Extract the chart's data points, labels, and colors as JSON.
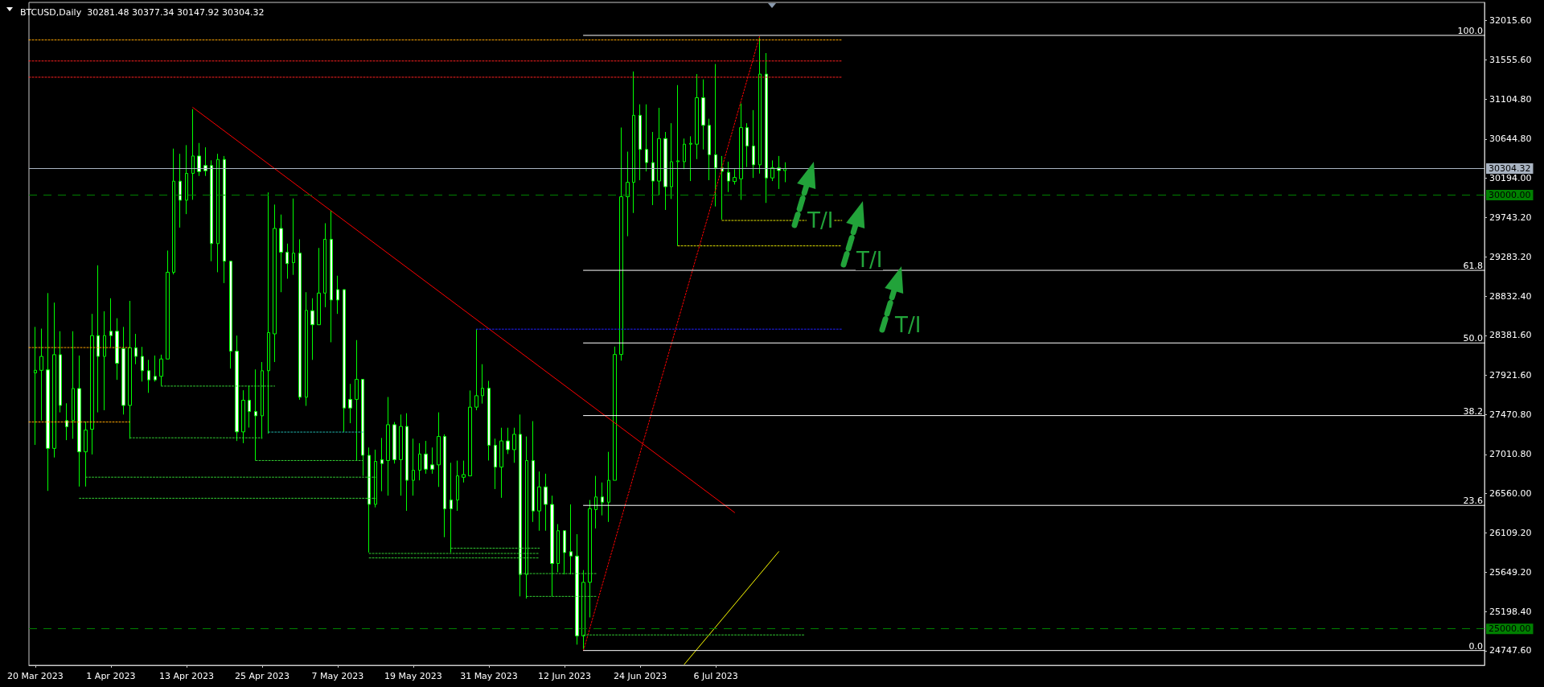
{
  "chart_data": {
    "type": "candlestick",
    "title": "BTCUSD,Daily  30281.48 30377.34 30147.92 30304.32",
    "xlim": [
      "2023-03-19",
      "2023-11-05"
    ],
    "xticks": [
      {
        "value": "2023-03-20",
        "label": "20 Mar 2023"
      },
      {
        "value": "2023-04-01",
        "label": "1 Apr 2023"
      },
      {
        "value": "2023-04-13",
        "label": "13 Apr 2023"
      },
      {
        "value": "2023-04-25",
        "label": "25 Apr 2023"
      },
      {
        "value": "2023-05-07",
        "label": "7 May 2023"
      },
      {
        "value": "2023-05-19",
        "label": "19 May 2023"
      },
      {
        "value": "2023-05-31",
        "label": "31 May 2023"
      },
      {
        "value": "2023-06-12",
        "label": "12 Jun 2023"
      },
      {
        "value": "2023-06-24",
        "label": "24 Jun 2023"
      },
      {
        "value": "2023-07-06",
        "label": "6 Jul 2023"
      }
    ],
    "ylim": [
      24580,
      32220
    ],
    "yticks": [
      {
        "value": 24747.6,
        "label": "24747.60"
      },
      {
        "value": 25198.4,
        "label": "25198.40"
      },
      {
        "value": 25649.2,
        "label": "25649.20"
      },
      {
        "value": 26109.2,
        "label": "26109.20"
      },
      {
        "value": 26560,
        "label": "26560.00"
      },
      {
        "value": 27010.8,
        "label": "27010.80"
      },
      {
        "value": 27470.8,
        "label": "27470.80"
      },
      {
        "value": 27921.6,
        "label": "27921.60"
      },
      {
        "value": 28381.6,
        "label": "28381.60"
      },
      {
        "value": 28832.4,
        "label": "28832.40"
      },
      {
        "value": 29283.2,
        "label": "29283.20"
      },
      {
        "value": 29743.2,
        "label": "29743.20"
      },
      {
        "value": 30194,
        "label": "30194.00"
      },
      {
        "value": 30644.8,
        "label": "30644.80"
      },
      {
        "value": 31104.8,
        "label": "31104.80"
      },
      {
        "value": 31555.6,
        "label": "31555.60"
      },
      {
        "value": 32015.6,
        "label": "32015.60"
      }
    ],
    "ref_lines": [
      {
        "axis": "y",
        "value": 30304.32,
        "label": "30304.32",
        "color": "#a9b4c2",
        "line_style": "solid"
      },
      {
        "axis": "y",
        "value": 30000,
        "label": "30000.00",
        "color": "#008000",
        "line_style": "dashed"
      },
      {
        "axis": "y",
        "value": 25000,
        "label": "25000.00",
        "color": "#008000",
        "line_style": "dashed"
      }
    ],
    "annotations": [
      "T/I",
      "T/I",
      "T/I"
    ],
    "series": [
      {
        "color": "#00ff00",
        "x": [
          "2023-03-20",
          "2023-03-21",
          "2023-03-22",
          "2023-03-23",
          "2023-03-24",
          "2023-03-25",
          "2023-03-26",
          "2023-03-27",
          "2023-03-28",
          "2023-03-29",
          "2023-03-30",
          "2023-03-31",
          "2023-04-01",
          "2023-04-02",
          "2023-04-03",
          "2023-04-04",
          "2023-04-05",
          "2023-04-06",
          "2023-04-07",
          "2023-04-08",
          "2023-04-09",
          "2023-04-10",
          "2023-04-11",
          "2023-04-12",
          "2023-04-13",
          "2023-04-14",
          "2023-04-15",
          "2023-04-16",
          "2023-04-17",
          "2023-04-18",
          "2023-04-19",
          "2023-04-20",
          "2023-04-21",
          "2023-04-22",
          "2023-04-23",
          "2023-04-24",
          "2023-04-25",
          "2023-04-26",
          "2023-04-27",
          "2023-04-28",
          "2023-04-29",
          "2023-04-30",
          "2023-05-01",
          "2023-05-02",
          "2023-05-03",
          "2023-05-04",
          "2023-05-05",
          "2023-05-06",
          "2023-05-07",
          "2023-05-08",
          "2023-05-09",
          "2023-05-10",
          "2023-05-11",
          "2023-05-12",
          "2023-05-13",
          "2023-05-14",
          "2023-05-15",
          "2023-05-16",
          "2023-05-17",
          "2023-05-18",
          "2023-05-19",
          "2023-05-20",
          "2023-05-21",
          "2023-05-22",
          "2023-05-23",
          "2023-05-24",
          "2023-05-25",
          "2023-05-26",
          "2023-05-27",
          "2023-05-28",
          "2023-05-29",
          "2023-05-30",
          "2023-05-31",
          "2023-06-01",
          "2023-06-02",
          "2023-06-03",
          "2023-06-04",
          "2023-06-05",
          "2023-06-06",
          "2023-06-07",
          "2023-06-08",
          "2023-06-09",
          "2023-06-10",
          "2023-06-11",
          "2023-06-12",
          "2023-06-13",
          "2023-06-14",
          "2023-06-15",
          "2023-06-16",
          "2023-06-17",
          "2023-06-18",
          "2023-06-19",
          "2023-06-20",
          "2023-06-21",
          "2023-06-22",
          "2023-06-23",
          "2023-06-24",
          "2023-06-25",
          "2023-06-26",
          "2023-06-27",
          "2023-06-28",
          "2023-06-29",
          "2023-06-30",
          "2023-07-01",
          "2023-07-02",
          "2023-07-03",
          "2023-07-04",
          "2023-07-05",
          "2023-07-06",
          "2023-07-07",
          "2023-07-08",
          "2023-07-09",
          "2023-07-10",
          "2023-07-11",
          "2023-07-12",
          "2023-07-13",
          "2023-07-14",
          "2023-07-15",
          "2023-07-16",
          "2023-07-17"
        ],
        "ohlc": [
          [
            27950,
            28480,
            27120,
            27980
          ],
          [
            27980,
            28460,
            27400,
            28140
          ],
          [
            27985,
            28870,
            26590,
            27080
          ],
          [
            27080,
            28760,
            26975,
            28160
          ],
          [
            28160,
            28430,
            27495,
            27575
          ],
          [
            27400,
            27600,
            27175,
            27330
          ],
          [
            27400,
            28430,
            27190,
            27770
          ],
          [
            27770,
            28150,
            26640,
            27040
          ],
          [
            27040,
            27390,
            26640,
            27290
          ],
          [
            27300,
            28630,
            27010,
            28380
          ],
          [
            28380,
            29190,
            27495,
            28140
          ],
          [
            28140,
            28660,
            27520,
            28380
          ],
          [
            28430,
            28810,
            28250,
            28380
          ],
          [
            28430,
            28580,
            27870,
            28060
          ],
          [
            28230,
            28480,
            27470,
            27575
          ],
          [
            27575,
            28780,
            27190,
            28240
          ],
          [
            28240,
            28400,
            28050,
            28140
          ],
          [
            28140,
            28250,
            27850,
            27975
          ],
          [
            27975,
            28100,
            27720,
            27870
          ],
          [
            27910,
            28150,
            27850,
            27870
          ],
          [
            27910,
            28160,
            27800,
            28110
          ],
          [
            28110,
            29360,
            28110,
            29110
          ],
          [
            29110,
            30535,
            29085,
            30160
          ],
          [
            30160,
            30475,
            29625,
            29940
          ],
          [
            29940,
            30575,
            29780,
            30250
          ],
          [
            30250,
            30990,
            29945,
            30450
          ],
          [
            30450,
            30600,
            30220,
            30270
          ],
          [
            30340,
            30550,
            30220,
            30280
          ],
          [
            30340,
            30400,
            29237,
            29440
          ],
          [
            29440,
            30475,
            29110,
            30410
          ],
          [
            30410,
            30450,
            28985,
            29237
          ],
          [
            29237,
            29237,
            28000,
            28200
          ],
          [
            28200,
            28380,
            27165,
            27270
          ],
          [
            27270,
            27750,
            27140,
            27635
          ],
          [
            27635,
            27800,
            27320,
            27505
          ],
          [
            27505,
            27990,
            26940,
            27455
          ],
          [
            27455,
            28075,
            27190,
            27975
          ],
          [
            27975,
            30030,
            27250,
            28415
          ],
          [
            28400,
            29890,
            28075,
            29615
          ],
          [
            29615,
            29775,
            28880,
            29340
          ],
          [
            29340,
            29440,
            29035,
            29210
          ],
          [
            29220,
            29960,
            29080,
            29330
          ],
          [
            29330,
            29490,
            27640,
            27670
          ],
          [
            27670,
            28880,
            27570,
            28670
          ],
          [
            28667,
            28810,
            28100,
            28505
          ],
          [
            28505,
            29390,
            28505,
            28870
          ],
          [
            28870,
            29675,
            28707,
            29490
          ],
          [
            29490,
            29818,
            28303,
            28790
          ],
          [
            28910,
            29070,
            28630,
            28790
          ],
          [
            28910,
            28910,
            27270,
            27545
          ],
          [
            27645,
            27823,
            27370,
            27545
          ],
          [
            27645,
            28328,
            26940,
            27875
          ],
          [
            27875,
            27875,
            26763,
            27000
          ],
          [
            27000,
            27090,
            25880,
            26435
          ],
          [
            26435,
            27065,
            26400,
            26930
          ],
          [
            26950,
            27200,
            26586,
            26905
          ],
          [
            26940,
            27672,
            26535,
            27353
          ],
          [
            27353,
            27384,
            26905,
            26950
          ],
          [
            26950,
            27470,
            26535,
            27333
          ],
          [
            27333,
            27485,
            26360,
            26712
          ],
          [
            26712,
            27192,
            26535,
            26828
          ],
          [
            26828,
            27140,
            26712,
            27015
          ],
          [
            27015,
            27166,
            26788,
            26840
          ],
          [
            26890,
            27090,
            26788,
            26840
          ],
          [
            26890,
            27495,
            26636,
            27217
          ],
          [
            27217,
            27242,
            26056,
            26384
          ],
          [
            26485,
            26914,
            25880,
            26384
          ],
          [
            26485,
            26939,
            26360,
            26763
          ],
          [
            26747,
            26939,
            26687,
            26778
          ],
          [
            26763,
            27747,
            26763,
            27555
          ],
          [
            27555,
            28454,
            27520,
            27687
          ],
          [
            27687,
            28050,
            27596,
            27773
          ],
          [
            27773,
            27858,
            26940,
            27116
          ],
          [
            27116,
            27192,
            26611,
            26864
          ],
          [
            26864,
            27318,
            26510,
            27166
          ],
          [
            27166,
            27318,
            27015,
            27065
          ],
          [
            27065,
            27318,
            26914,
            27242
          ],
          [
            27242,
            27470,
            25374,
            25626
          ],
          [
            25626,
            27217,
            25349,
            26939
          ],
          [
            26939,
            27394,
            26232,
            26359
          ],
          [
            26359,
            26813,
            26131,
            26636
          ],
          [
            26636,
            26788,
            26131,
            26434
          ],
          [
            26434,
            26535,
            25374,
            25753
          ],
          [
            25753,
            26207,
            25652,
            26131
          ],
          [
            26131,
            26131,
            25627,
            25879
          ],
          [
            25889,
            26434,
            25627,
            25839
          ],
          [
            25839,
            26091,
            24818,
            24919
          ],
          [
            24919,
            25677,
            24768,
            25536
          ],
          [
            25536,
            26485,
            25132,
            26384
          ],
          [
            26374,
            26763,
            26157,
            26520
          ],
          [
            26520,
            26687,
            26308,
            26460
          ],
          [
            26460,
            27040,
            26232,
            26712
          ],
          [
            26712,
            28253,
            26712,
            28162
          ],
          [
            28162,
            30778,
            28091,
            29980
          ],
          [
            29980,
            30500,
            29525,
            30146
          ],
          [
            30146,
            31424,
            29793,
            30919
          ],
          [
            30919,
            31045,
            30171,
            30525
          ],
          [
            30525,
            31045,
            30272,
            30374
          ],
          [
            30374,
            30727,
            29884,
            30161
          ],
          [
            30161,
            31005,
            29995,
            30651
          ],
          [
            30651,
            30727,
            29828,
            30096
          ],
          [
            30096,
            30828,
            29954,
            30384
          ],
          [
            30384,
            31267,
            29414,
            30394
          ],
          [
            30384,
            30651,
            30298,
            30586
          ],
          [
            30586,
            30677,
            30161,
            30596
          ],
          [
            30586,
            31394,
            30414,
            31121
          ],
          [
            31121,
            31333,
            30525,
            30803
          ],
          [
            30803,
            30879,
            30171,
            30465
          ],
          [
            30465,
            31510,
            29868,
            30313
          ],
          [
            30313,
            30450,
            29717,
            30273
          ],
          [
            30262,
            30384,
            30035,
            30161
          ],
          [
            30156,
            30298,
            30121,
            30202
          ],
          [
            30187,
            31055,
            29944,
            30777
          ],
          [
            30777,
            30828,
            30323,
            30565
          ],
          [
            30565,
            30979,
            30197,
            30348
          ],
          [
            30348,
            31813,
            30247,
            31394
          ],
          [
            31394,
            31636,
            29909,
            30197
          ],
          [
            30197,
            30399,
            30161,
            30313
          ],
          [
            30313,
            30450,
            30070,
            30283
          ],
          [
            30281.48,
            30377.34,
            30147.92,
            30304.32
          ]
        ]
      },
      {
        "type": "line",
        "color": "#ff0000",
        "line_style": "solid",
        "x": [
          "2023-04-14",
          "2023-07-09"
        ],
        "values": [
          31010,
          26340
        ]
      },
      {
        "type": "line",
        "color": "#ff0000",
        "line_style": "dotted",
        "x": [
          "2023-06-15",
          "2023-07-13"
        ],
        "values": [
          24750,
          31840
        ]
      },
      {
        "type": "line",
        "color": "#ffff00",
        "line_style": "solid",
        "x": [
          "2023-07-01",
          "2023-07-16"
        ],
        "values": [
          24590,
          25890
        ]
      },
      {
        "type": "line",
        "name": "100.0",
        "color": "#ffffff",
        "line_style": "solid",
        "x": [
          "2023-06-15",
          "2023-11-05"
        ],
        "values": [
          31840,
          31840
        ]
      },
      {
        "type": "line",
        "name": "61.8",
        "color": "#ffffff",
        "line_style": "solid",
        "x": [
          "2023-06-15",
          "2023-11-05"
        ],
        "values": [
          29132,
          29132
        ]
      },
      {
        "type": "line",
        "name": "50.0",
        "color": "#ffffff",
        "line_style": "solid",
        "x": [
          "2023-06-15",
          "2023-11-05"
        ],
        "values": [
          28295,
          28295
        ]
      },
      {
        "type": "line",
        "name": "38.2",
        "color": "#ffffff",
        "line_style": "solid",
        "x": [
          "2023-06-15",
          "2023-11-05"
        ],
        "values": [
          27458,
          27458
        ]
      },
      {
        "type": "line",
        "name": "23.6",
        "color": "#ffffff",
        "line_style": "solid",
        "x": [
          "2023-06-15",
          "2023-11-05"
        ],
        "values": [
          26423,
          26423
        ]
      },
      {
        "type": "line",
        "name": "0.0",
        "color": "#ffffff",
        "line_style": "solid",
        "x": [
          "2023-06-15",
          "2023-11-05"
        ],
        "values": [
          24750,
          24750
        ]
      },
      {
        "type": "line",
        "color": "#ffa500",
        "line_style": "dotted",
        "x": [
          "2023-03-19",
          "2023-07-26"
        ],
        "values": [
          31787,
          31787
        ]
      },
      {
        "type": "line",
        "color": "#ff2020",
        "line_style": "dotted",
        "x": [
          "2023-03-19",
          "2023-07-26"
        ],
        "values": [
          31545,
          31545
        ]
      },
      {
        "type": "line",
        "color": "#ff2020",
        "line_style": "dotted",
        "x": [
          "2023-03-19",
          "2023-07-26"
        ],
        "values": [
          31358,
          31358
        ]
      },
      {
        "type": "line",
        "color": "#2020ff",
        "line_style": "dotted",
        "x": [
          "2023-05-29",
          "2023-07-26"
        ],
        "values": [
          28454,
          28454
        ]
      },
      {
        "type": "line",
        "color": "#e0e000",
        "line_style": "dotted",
        "x": [
          "2023-07-07",
          "2023-07-26"
        ],
        "values": [
          29707,
          29707
        ]
      },
      {
        "type": "line",
        "color": "#e0e000",
        "line_style": "dotted",
        "x": [
          "2023-06-30",
          "2023-07-26"
        ],
        "values": [
          29414,
          29414
        ]
      },
      {
        "type": "line",
        "color": "#ffa500",
        "line_style": "dotted",
        "x": [
          "2023-03-19",
          "2023-04-04"
        ],
        "values": [
          28242,
          28242
        ]
      },
      {
        "type": "line",
        "color": "#ffa500",
        "line_style": "dotted",
        "x": [
          "2023-03-19",
          "2023-04-04"
        ],
        "values": [
          27384,
          27384
        ]
      },
      {
        "type": "line",
        "color": "#32cd32",
        "line_style": "dotted",
        "x": [
          "2023-04-09",
          "2023-04-27"
        ],
        "values": [
          27798,
          27798
        ]
      },
      {
        "type": "line",
        "color": "#32cd32",
        "line_style": "dotted",
        "x": [
          "2023-04-04",
          "2023-04-25"
        ],
        "values": [
          27202,
          27202
        ]
      },
      {
        "type": "line",
        "color": "#20b2aa",
        "line_style": "dotted",
        "x": [
          "2023-04-26",
          "2023-05-11"
        ],
        "values": [
          27268,
          27268
        ]
      },
      {
        "type": "line",
        "color": "#32cd32",
        "line_style": "dotted",
        "x": [
          "2023-04-24",
          "2023-05-11"
        ],
        "values": [
          26940,
          26940
        ]
      },
      {
        "type": "line",
        "color": "#32cd32",
        "line_style": "dotted",
        "x": [
          "2023-03-28",
          "2023-05-13"
        ],
        "values": [
          26748,
          26748
        ]
      },
      {
        "type": "line",
        "color": "#32cd32",
        "line_style": "dotted",
        "x": [
          "2023-03-27",
          "2023-05-13"
        ],
        "values": [
          26505,
          26505
        ]
      },
      {
        "type": "line",
        "color": "#32cd32",
        "line_style": "dotted",
        "x": [
          "2023-05-25",
          "2023-06-08"
        ],
        "values": [
          25930,
          25930
        ]
      },
      {
        "type": "line",
        "color": "#32cd32",
        "line_style": "dotted",
        "x": [
          "2023-05-12",
          "2023-06-08"
        ],
        "values": [
          25869,
          25869
        ]
      },
      {
        "type": "line",
        "color": "#32cd32",
        "line_style": "dotted",
        "x": [
          "2023-05-12",
          "2023-06-08"
        ],
        "values": [
          25818,
          25818
        ]
      },
      {
        "type": "line",
        "color": "#32cd32",
        "line_style": "dotted",
        "x": [
          "2023-06-05",
          "2023-06-17"
        ],
        "values": [
          25637,
          25637
        ]
      },
      {
        "type": "line",
        "color": "#32cd32",
        "line_style": "dotted",
        "x": [
          "2023-06-06",
          "2023-06-17"
        ],
        "values": [
          25374,
          25374
        ]
      },
      {
        "type": "line",
        "color": "#32cd32",
        "line_style": "dotted",
        "x": [
          "2023-06-15",
          "2023-07-20"
        ],
        "values": [
          24930,
          24930
        ]
      }
    ]
  }
}
